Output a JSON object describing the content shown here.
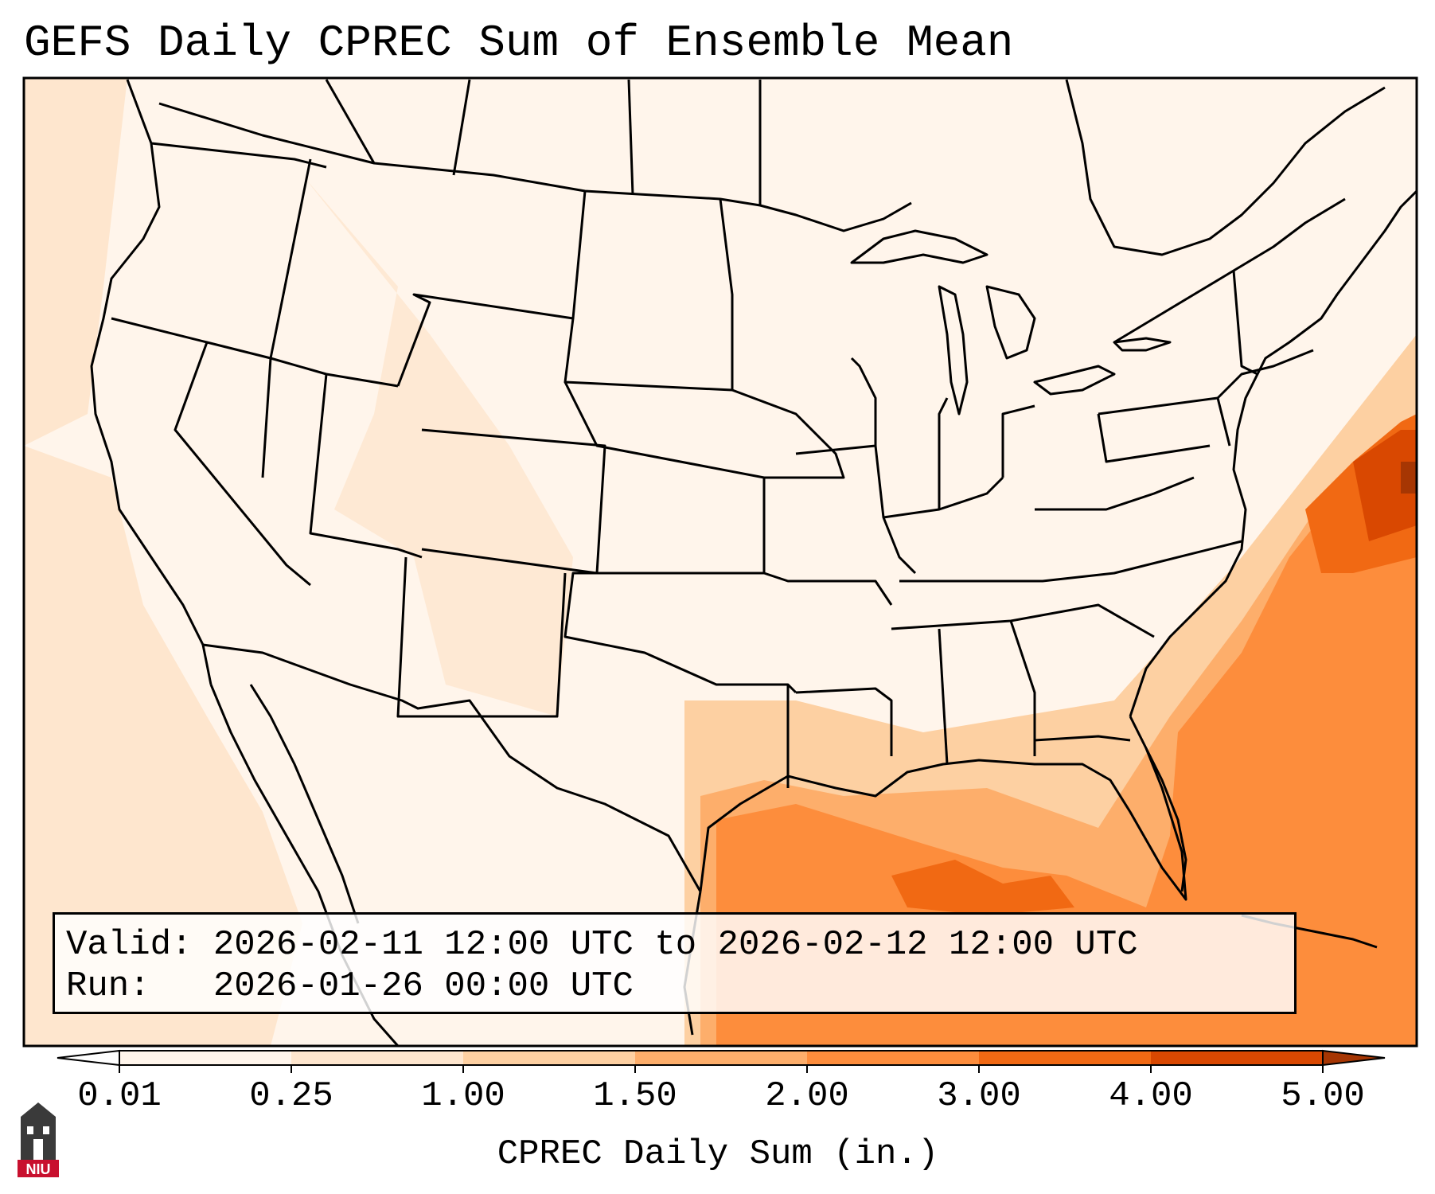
{
  "title": "GEFS Daily CPREC Sum of Ensemble Mean",
  "info": {
    "valid_label": "Valid:",
    "valid_value": "2026-02-11 12:00 UTC to 2026-02-12 12:00 UTC",
    "run_label": "Run:",
    "run_value": "2026-01-26 00:00 UTC"
  },
  "colorbar": {
    "label": "CPREC Daily Sum (in.)",
    "ticks": [
      "0.01",
      "0.25",
      "1.00",
      "1.50",
      "2.00",
      "3.00",
      "4.00",
      "5.00"
    ],
    "colors": [
      "#fff5eb",
      "#fee6ce",
      "#fdd0a2",
      "#fdae6b",
      "#fd8d3c",
      "#f16913",
      "#d94801",
      "#a63603"
    ],
    "extend_min_color": "#ffffff",
    "extend_max_color": "#a63603"
  },
  "logo": {
    "text": "NIU"
  }
}
